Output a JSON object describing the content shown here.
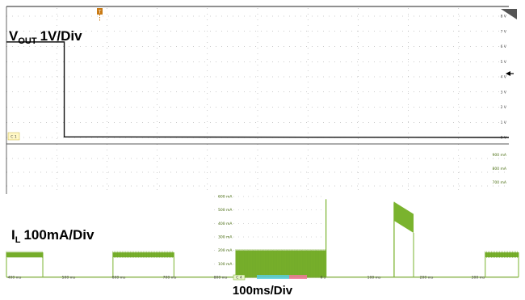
{
  "colors": {
    "trace_voltage": "#111111",
    "trace_current": "#7ab32e",
    "grid": "#9a9a9a",
    "marker": "#c97a14",
    "cursor_cyan": "#5ccfe0",
    "cursor_pink": "#f07a9a"
  },
  "icons": {
    "trigger_marker": "trigger-marker-icon",
    "level_arrow": "level-arrow-icon"
  },
  "labels": {
    "vout_main": "V",
    "vout_sub": "OUT",
    "vout_scale": "1V/Div",
    "il_main": "I",
    "il_sub": "L",
    "il_scale": "100mA/Div",
    "time_scale": "100ms/Div",
    "ch1_tag": "C 1",
    "ch4_tag": "C 4",
    "trigger_tag": "T"
  },
  "chart_data": [
    {
      "type": "line",
      "name": "voltage-channel",
      "y_unit": "V",
      "y_ticks": [
        "8 V",
        "7 V",
        "6 V",
        "5 V",
        "4 V",
        "3 V",
        "2 V",
        "1 V",
        "0 V"
      ],
      "y_ticks_lower": [
        "900 mA",
        "800 mA",
        "700 mA"
      ],
      "ylim": [
        0,
        8
      ],
      "series": [
        {
          "name": "VOUT",
          "x": [
            0,
            0.115,
            0.115,
            1
          ],
          "y": [
            6.3,
            6.3,
            0.04,
            0.0
          ]
        }
      ],
      "grid": true
    },
    {
      "type": "area",
      "name": "current-channel",
      "y_unit": "mA",
      "y_ticks": [
        "600 mA",
        "500 mA",
        "400 mA",
        "300 mA",
        "200 mA",
        "100 mA"
      ],
      "ylim": [
        0,
        600
      ],
      "x_ticks": [
        "400 ms",
        "500 ms",
        "600 ms",
        "700 ms",
        "800 ms",
        "0 s",
        "100 ms",
        "200 ms",
        "300 ms"
      ],
      "series": [
        {
          "name": "IL",
          "segments": [
            {
              "x0": 0.0,
              "x1": 0.071,
              "low": 150,
              "high": 185
            },
            {
              "x0": 0.208,
              "x1": 0.327,
              "low": 150,
              "high": 185
            },
            {
              "x0": 0.448,
              "x1": 0.624,
              "low": 0,
              "high": 200
            },
            {
              "x0": 0.757,
              "x1": 0.795,
              "low": 330,
              "high": 470,
              "peak_start": 560
            },
            {
              "x0": 0.935,
              "x1": 1.0,
              "low": 150,
              "high": 185
            }
          ],
          "spikes": [
            {
              "x": 0.624,
              "value": 580
            },
            {
              "x": 0.757,
              "value": 550
            }
          ],
          "baseline": 2
        }
      ],
      "grid": true
    }
  ]
}
